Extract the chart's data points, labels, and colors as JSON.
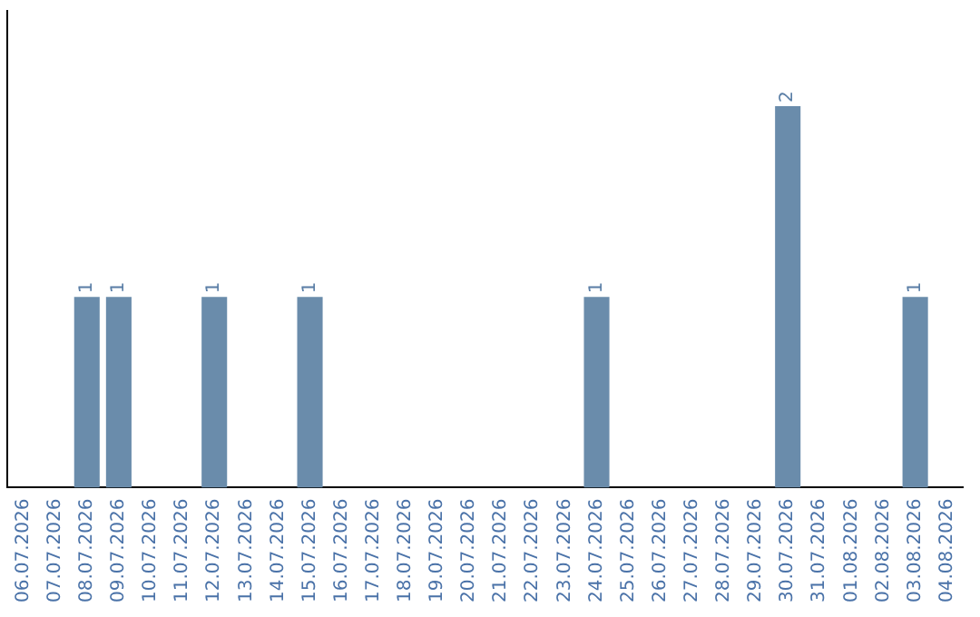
{
  "chart_data": {
    "type": "bar",
    "categories": [
      "06.07.2026",
      "07.07.2026",
      "08.07.2026",
      "09.07.2026",
      "10.07.2026",
      "11.07.2026",
      "12.07.2026",
      "13.07.2026",
      "14.07.2026",
      "15.07.2026",
      "16.07.2026",
      "17.07.2026",
      "18.07.2026",
      "19.07.2026",
      "20.07.2026",
      "21.07.2026",
      "22.07.2026",
      "23.07.2026",
      "24.07.2026",
      "25.07.2026",
      "26.07.2026",
      "27.07.2026",
      "28.07.2026",
      "29.07.2026",
      "30.07.2026",
      "31.07.2026",
      "01.08.2026",
      "02.08.2026",
      "03.08.2026",
      "04.08.2026"
    ],
    "values": [
      0,
      0,
      1,
      1,
      0,
      0,
      1,
      0,
      0,
      1,
      0,
      0,
      0,
      0,
      0,
      0,
      0,
      0,
      1,
      0,
      0,
      0,
      0,
      0,
      2,
      0,
      0,
      0,
      1,
      0
    ],
    "value_labels": [
      null,
      null,
      "1",
      "1",
      null,
      null,
      "1",
      null,
      null,
      "1",
      null,
      null,
      null,
      null,
      null,
      null,
      null,
      null,
      "1",
      null,
      null,
      null,
      null,
      null,
      "2",
      null,
      null,
      null,
      "1",
      null
    ],
    "color": "#6a8cab",
    "grid": false,
    "legend": false,
    "tick_labels": "x"
  }
}
